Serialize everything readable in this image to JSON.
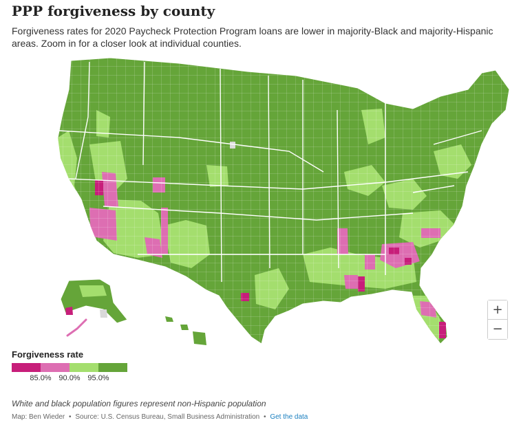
{
  "header": {
    "title": "PPP forgiveness by county",
    "subtitle": "Forgiveness rates for 2020 Paycheck Protection Program loans are lower in majority-Black and majority-Hispanic areas. Zoom in for a closer look at individual counties."
  },
  "map": {
    "colors": {
      "below_85": "#c71e7a",
      "from_85_to_90": "#dd6eb2",
      "from_90_to_95": "#a4de6e",
      "above_95": "#65a539",
      "no_data": "#d9d9d9",
      "border": "#ffffff"
    },
    "zoom": {
      "in_label": "+",
      "out_label": "−"
    }
  },
  "legend": {
    "title": "Forgiveness rate",
    "ticks": [
      "85.0%",
      "90.0%",
      "95.0%"
    ],
    "bins": [
      {
        "range": "below 85.0%",
        "color": "#c71e7a"
      },
      {
        "range": "85.0% – 90.0%",
        "color": "#dd6eb2"
      },
      {
        "range": "90.0% – 95.0%",
        "color": "#a4de6e"
      },
      {
        "range": "above 95.0%",
        "color": "#65a539"
      }
    ]
  },
  "footer": {
    "note": "White and black population figures represent non-Hispanic population",
    "map_credit": "Map: Ben Wieder",
    "sep1": "•",
    "source": "Source: U.S. Census Bureau, Small Business Administration",
    "sep2": "•",
    "data_link": "Get the data"
  }
}
